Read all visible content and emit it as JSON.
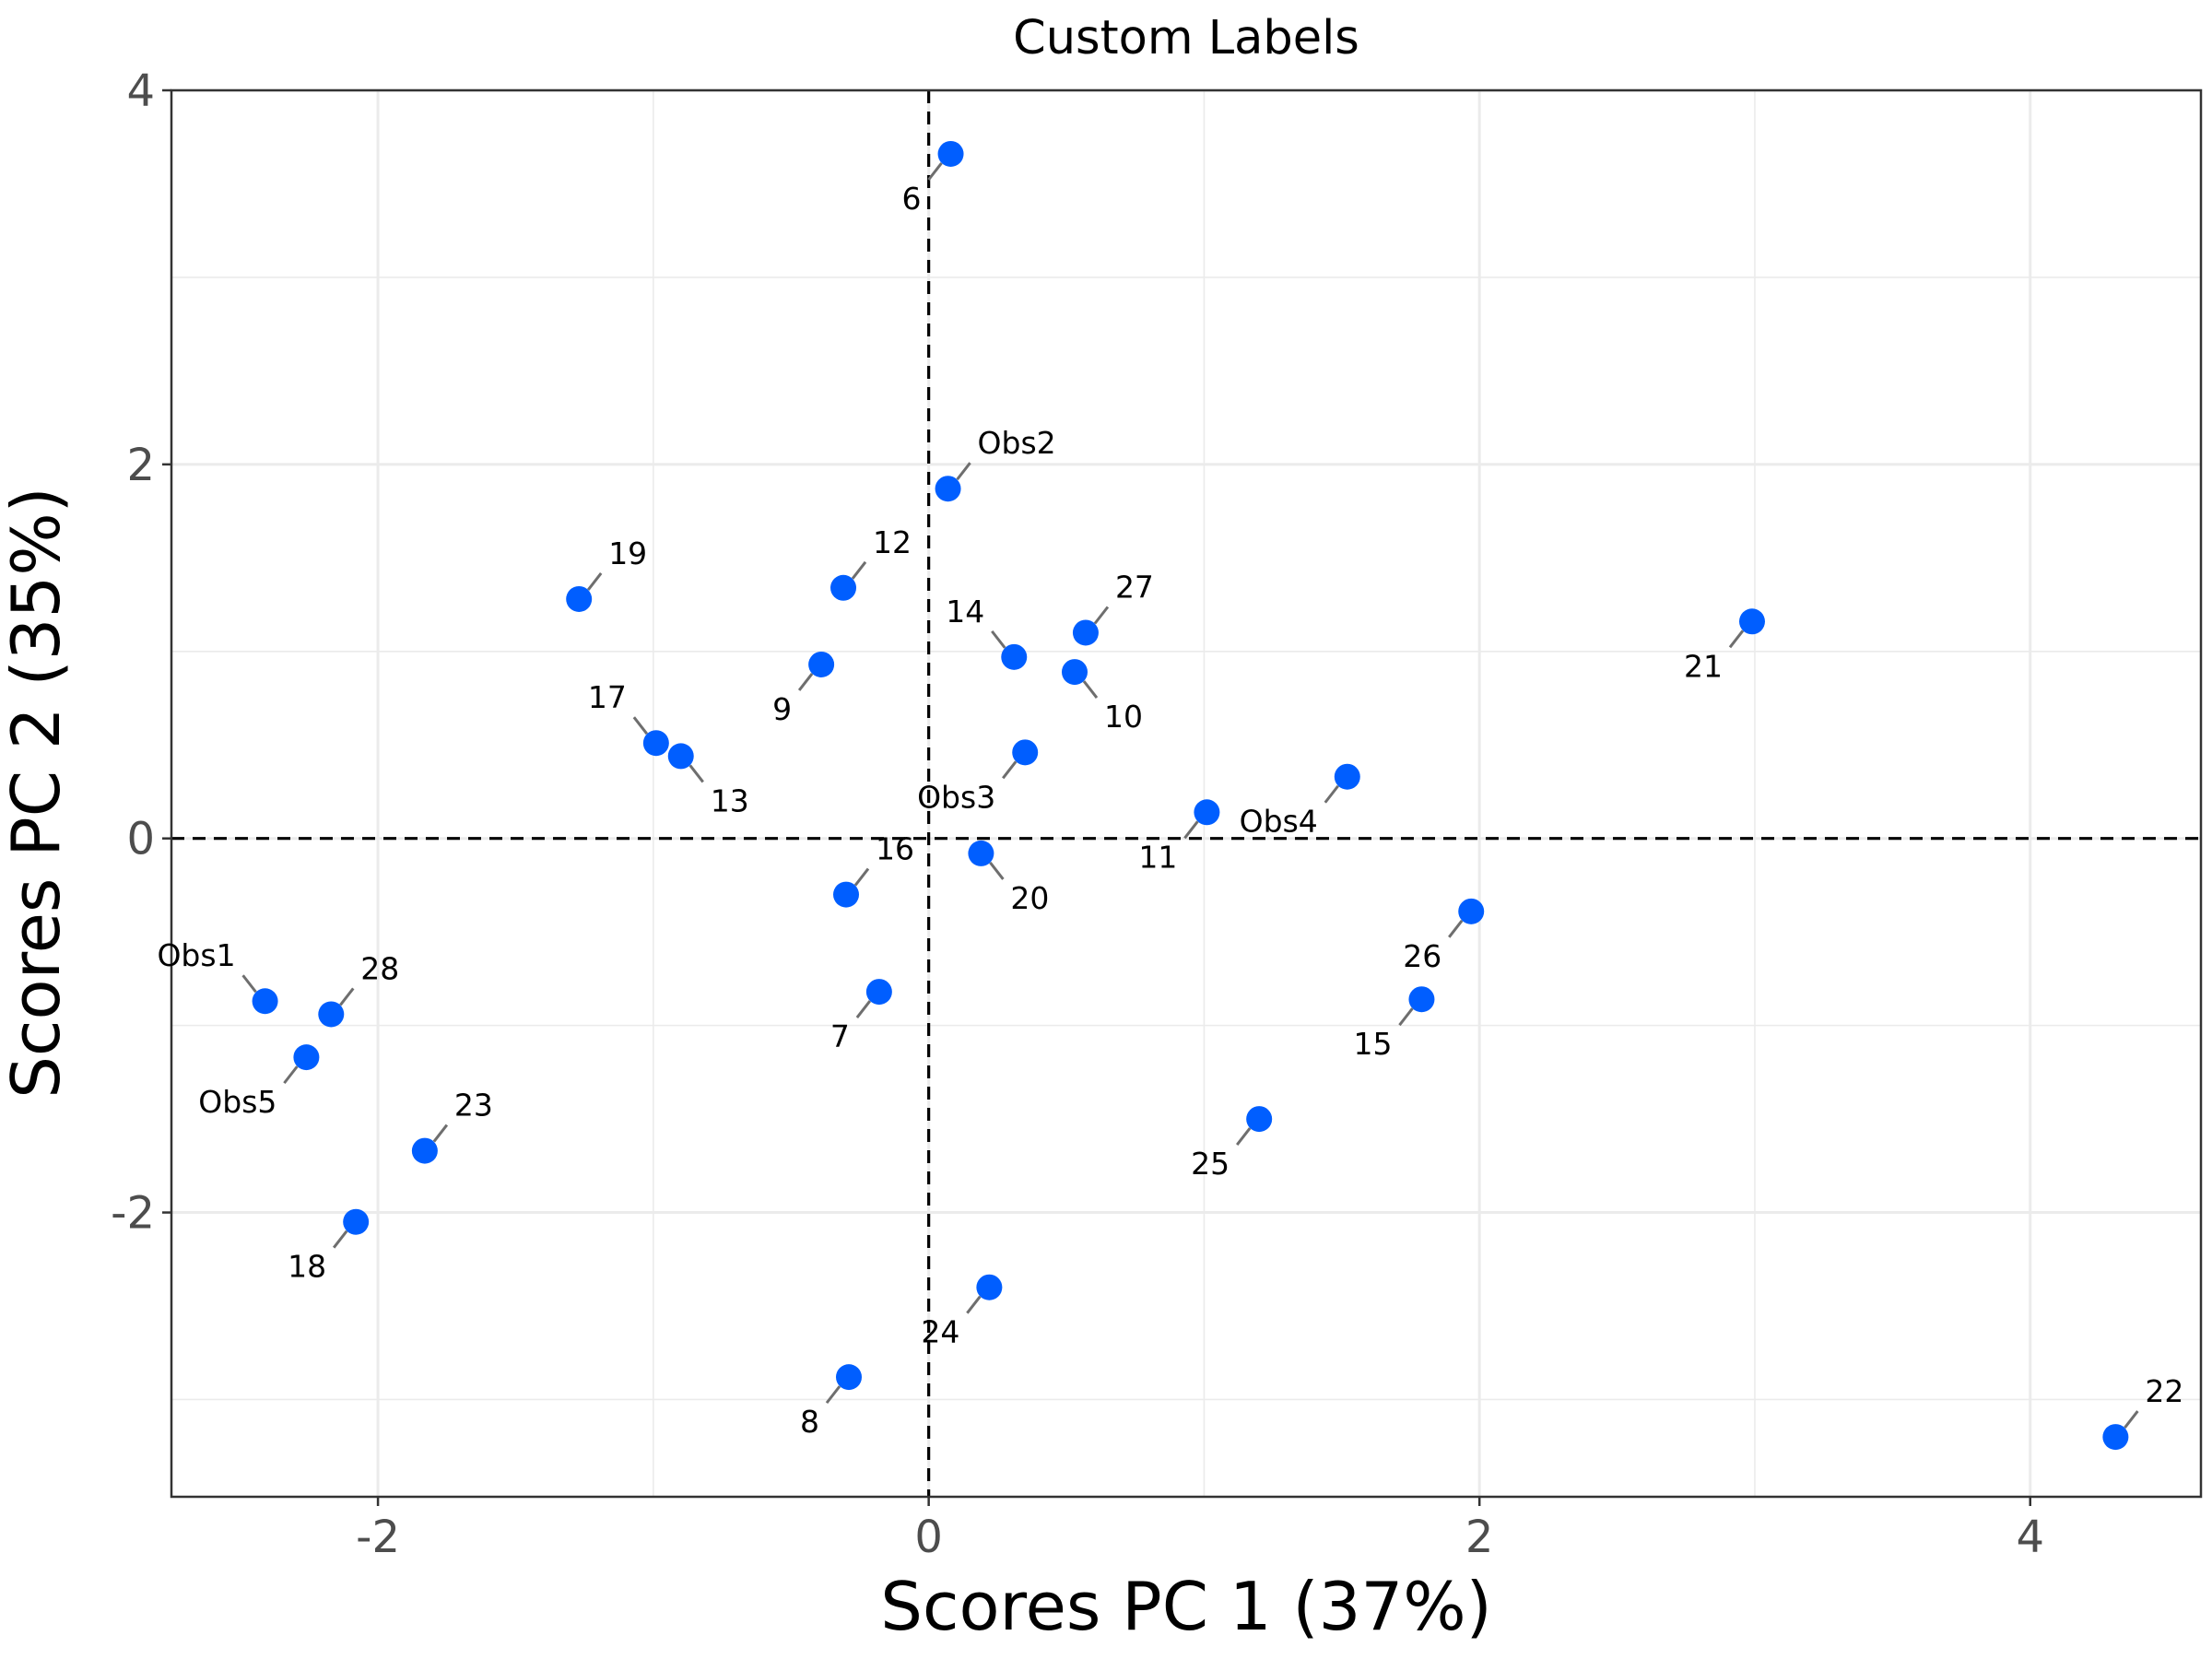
{
  "chart_data": {
    "type": "scatter",
    "title": "Custom Labels",
    "xlabel": "Scores PC 1 (37%)",
    "ylabel": "Scores PC 2 (35%)",
    "xlim": [
      -2.75,
      4.62
    ],
    "ylim": [
      -3.52,
      4.0
    ],
    "x_ticks": [
      -2,
      0,
      2,
      4
    ],
    "y_ticks": [
      -2,
      0,
      2,
      4
    ],
    "x_tick_labels": [
      "-2",
      "0",
      "2",
      "4"
    ],
    "y_tick_labels": [
      "-2",
      "0",
      "2",
      "4"
    ],
    "grid": true,
    "reference_lines": {
      "x": 0,
      "y": 0,
      "style": "dashed"
    },
    "point_color": "#005EFF",
    "points": [
      {
        "label": "Obs1",
        "x": -2.41,
        "y": -0.87,
        "label_dir": "nw"
      },
      {
        "label": "Obs2",
        "x": 0.07,
        "y": 1.87,
        "label_dir": "ne"
      },
      {
        "label": "Obs3",
        "x": 0.35,
        "y": 0.46,
        "label_dir": "sw"
      },
      {
        "label": "Obs4",
        "x": 1.52,
        "y": 0.33,
        "label_dir": "sw"
      },
      {
        "label": "Obs5",
        "x": -2.26,
        "y": -1.17,
        "label_dir": "sw"
      },
      {
        "label": "6",
        "x": 0.08,
        "y": 3.66,
        "label_dir": "sw"
      },
      {
        "label": "7",
        "x": -0.18,
        "y": -0.82,
        "label_dir": "sw"
      },
      {
        "label": "8",
        "x": -0.29,
        "y": -2.88,
        "label_dir": "sw"
      },
      {
        "label": "9",
        "x": -0.39,
        "y": 0.93,
        "label_dir": "sw"
      },
      {
        "label": "10",
        "x": 0.53,
        "y": 0.89,
        "label_dir": "se"
      },
      {
        "label": "11",
        "x": 1.01,
        "y": 0.14,
        "label_dir": "sw"
      },
      {
        "label": "12",
        "x": -0.31,
        "y": 1.34,
        "label_dir": "ne"
      },
      {
        "label": "13",
        "x": -0.9,
        "y": 0.44,
        "label_dir": "se"
      },
      {
        "label": "14",
        "x": 0.31,
        "y": 0.97,
        "label_dir": "nw"
      },
      {
        "label": "15",
        "x": 1.79,
        "y": -0.86,
        "label_dir": "sw"
      },
      {
        "label": "16",
        "x": -0.3,
        "y": -0.3,
        "label_dir": "ne"
      },
      {
        "label": "17",
        "x": -0.99,
        "y": 0.51,
        "label_dir": "nw"
      },
      {
        "label": "18",
        "x": -2.08,
        "y": -2.05,
        "label_dir": "sw"
      },
      {
        "label": "19",
        "x": -1.27,
        "y": 1.28,
        "label_dir": "ne"
      },
      {
        "label": "20",
        "x": 0.19,
        "y": -0.08,
        "label_dir": "se"
      },
      {
        "label": "21",
        "x": 2.99,
        "y": 1.16,
        "label_dir": "sw"
      },
      {
        "label": "22",
        "x": 4.31,
        "y": -3.2,
        "label_dir": "ne"
      },
      {
        "label": "23",
        "x": -1.83,
        "y": -1.67,
        "label_dir": "ne"
      },
      {
        "label": "24",
        "x": 0.22,
        "y": -2.4,
        "label_dir": "sw"
      },
      {
        "label": "25",
        "x": 1.2,
        "y": -1.5,
        "label_dir": "sw"
      },
      {
        "label": "26",
        "x": 1.97,
        "y": -0.39,
        "label_dir": "sw"
      },
      {
        "label": "27",
        "x": 0.57,
        "y": 1.1,
        "label_dir": "ne"
      },
      {
        "label": "28",
        "x": -2.17,
        "y": -0.94,
        "label_dir": "ne"
      }
    ]
  }
}
